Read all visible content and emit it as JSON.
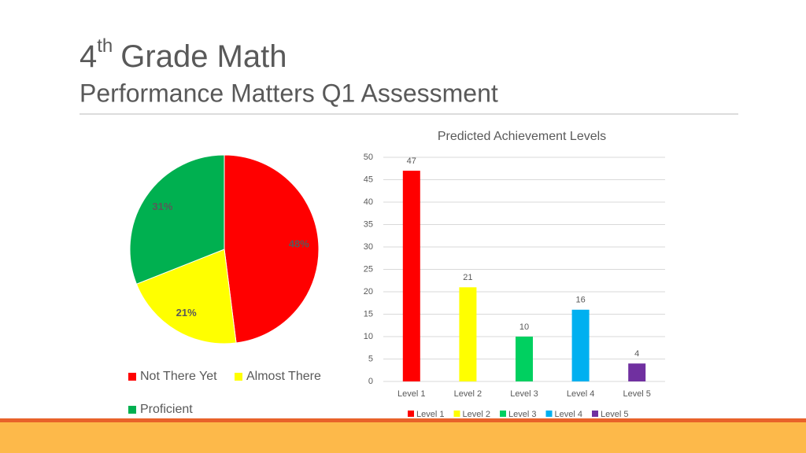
{
  "header": {
    "title_parts": [
      "4",
      "th",
      "Grade Math"
    ],
    "subtitle": "Performance Matters Q1 Assessment"
  },
  "chart_data": [
    {
      "type": "pie",
      "categories": [
        "Not There Yet",
        "Almost There",
        "Proficient"
      ],
      "values": [
        48,
        21,
        31
      ],
      "value_labels": [
        "48%",
        "21%",
        "31%"
      ],
      "colors": [
        "#ff0000",
        "#ffff00",
        "#00b050"
      ],
      "legend": "bottom"
    },
    {
      "type": "bar",
      "title": "Predicted Achievement Levels",
      "categories": [
        "Level 1",
        "Level 2",
        "Level 3",
        "Level 4",
        "Level 5"
      ],
      "values": [
        47,
        21,
        10,
        16,
        4
      ],
      "colors": [
        "#ff0000",
        "#ffff00",
        "#00d060",
        "#00b0f0",
        "#7030a0"
      ],
      "ylim": [
        0,
        50
      ],
      "yticks": [
        0,
        5,
        10,
        15,
        20,
        25,
        30,
        35,
        40,
        45,
        50
      ],
      "grid": true,
      "legend": "bottom"
    }
  ]
}
